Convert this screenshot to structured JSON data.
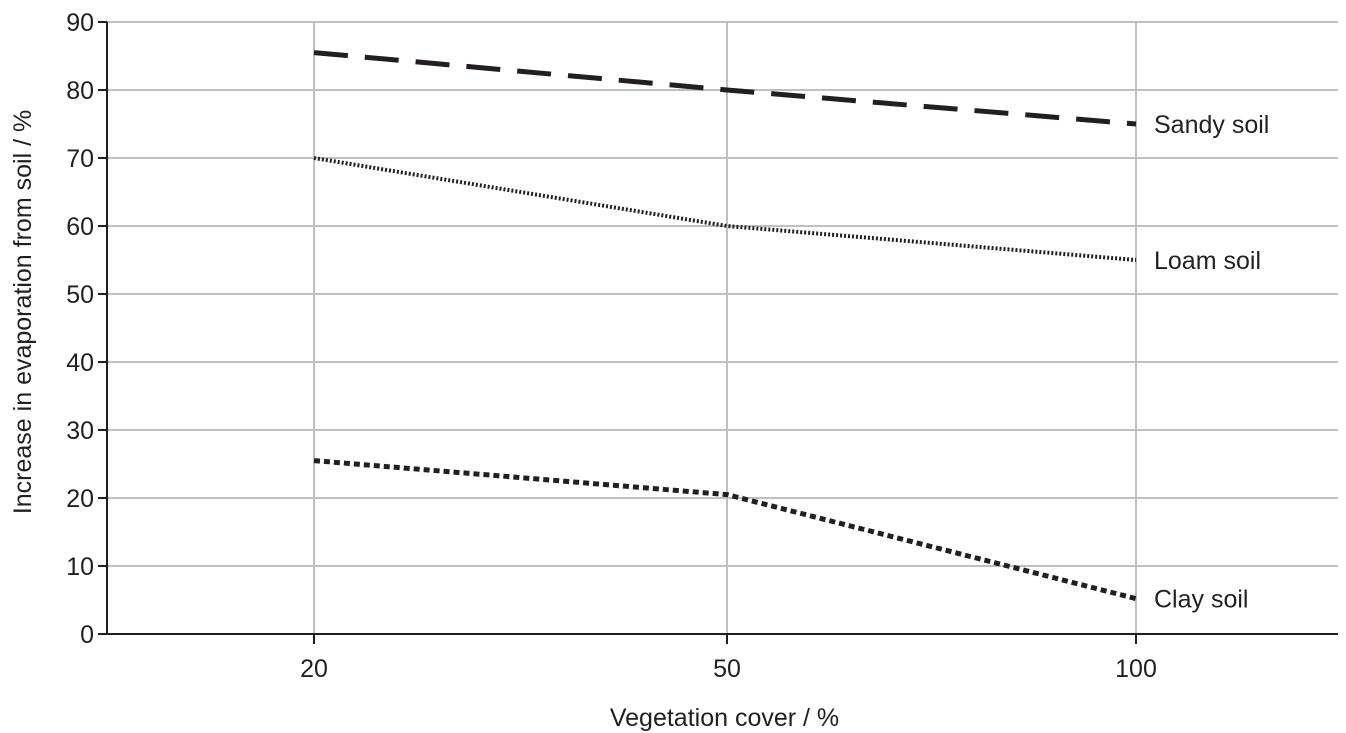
{
  "chart_data": {
    "type": "line",
    "title": "",
    "xlabel": "Vegetation cover / %",
    "ylabel": "Increase in evaporation from soil / %",
    "categories": [
      "20",
      "50",
      "100"
    ],
    "ylim": [
      0,
      90
    ],
    "yticks": [
      0,
      10,
      20,
      30,
      40,
      50,
      60,
      70,
      80,
      90
    ],
    "grid": true,
    "legend": "direct labels at right end of lines",
    "series": [
      {
        "name": "Sandy soil",
        "values": [
          85.5,
          80,
          75
        ],
        "style": "dashed",
        "color": "#231f20"
      },
      {
        "name": "Loam soil",
        "values": [
          70,
          60,
          55
        ],
        "style": "dotted-fine",
        "color": "#231f20"
      },
      {
        "name": "Clay soil",
        "values": [
          25.5,
          20.5,
          5.2
        ],
        "style": "dotted-coarse",
        "color": "#231f20"
      }
    ],
    "colors": {
      "grid": "#c0c0c0",
      "axis": "#231f20",
      "text": "#231f20"
    }
  }
}
